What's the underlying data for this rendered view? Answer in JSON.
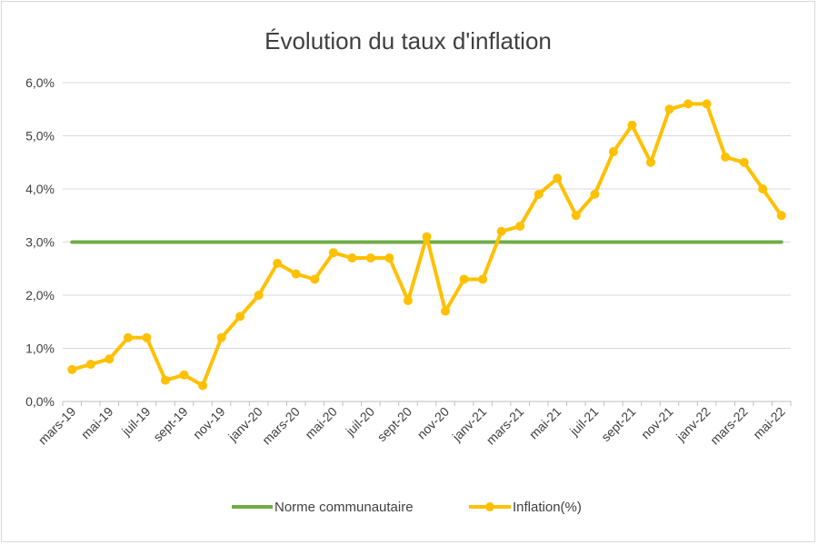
{
  "chart_data": {
    "type": "line",
    "title": "Évolution du taux d'inflation",
    "xlabel": "",
    "ylabel": "",
    "ylim": [
      0,
      6
    ],
    "y_ticks": [
      "0,0%",
      "1,0%",
      "2,0%",
      "3,0%",
      "4,0%",
      "5,0%",
      "6,0%"
    ],
    "x_tick_labels": [
      "mars-19",
      "mai-19",
      "juil-19",
      "sept-19",
      "nov-19",
      "janv-20",
      "mars-20",
      "mai-20",
      "juil-20",
      "sept-20",
      "nov-20",
      "janv-21",
      "mars-21",
      "mai-21",
      "juil-21",
      "sept-21",
      "nov-21",
      "janv-22",
      "mars-22",
      "mai-22"
    ],
    "categories": [
      "mars-19",
      "avr-19",
      "mai-19",
      "juin-19",
      "juil-19",
      "août-19",
      "sept-19",
      "oct-19",
      "nov-19",
      "déc-19",
      "janv-20",
      "févr-20",
      "mars-20",
      "avr-20",
      "mai-20",
      "juin-20",
      "juil-20",
      "août-20",
      "sept-20",
      "oct-20",
      "nov-20",
      "déc-20",
      "janv-21",
      "févr-21",
      "mars-21",
      "avr-21",
      "mai-21",
      "juin-21",
      "juil-21",
      "août-21",
      "sept-21",
      "oct-21",
      "nov-21",
      "déc-21",
      "janv-22",
      "févr-22",
      "mars-22",
      "avr-22",
      "mai-22"
    ],
    "series": [
      {
        "name": "Norme communautaire",
        "color": "#70ad47",
        "values": [
          3,
          3,
          3,
          3,
          3,
          3,
          3,
          3,
          3,
          3,
          3,
          3,
          3,
          3,
          3,
          3,
          3,
          3,
          3,
          3,
          3,
          3,
          3,
          3,
          3,
          3,
          3,
          3,
          3,
          3,
          3,
          3,
          3,
          3,
          3,
          3,
          3,
          3,
          3
        ]
      },
      {
        "name": "Inflation(%)",
        "color": "#ffc000",
        "markers": true,
        "values": [
          0.6,
          0.7,
          0.8,
          1.2,
          1.2,
          0.4,
          0.5,
          0.3,
          1.2,
          1.6,
          2.0,
          2.6,
          2.4,
          2.3,
          2.8,
          2.7,
          2.7,
          2.7,
          1.9,
          3.1,
          1.7,
          2.3,
          2.3,
          3.2,
          3.3,
          3.9,
          4.2,
          3.5,
          3.9,
          4.7,
          5.2,
          4.5,
          5.5,
          5.6,
          5.6,
          4.6,
          4.5,
          4.0,
          3.5
        ]
      }
    ],
    "grid": true,
    "legend": "bottom"
  }
}
